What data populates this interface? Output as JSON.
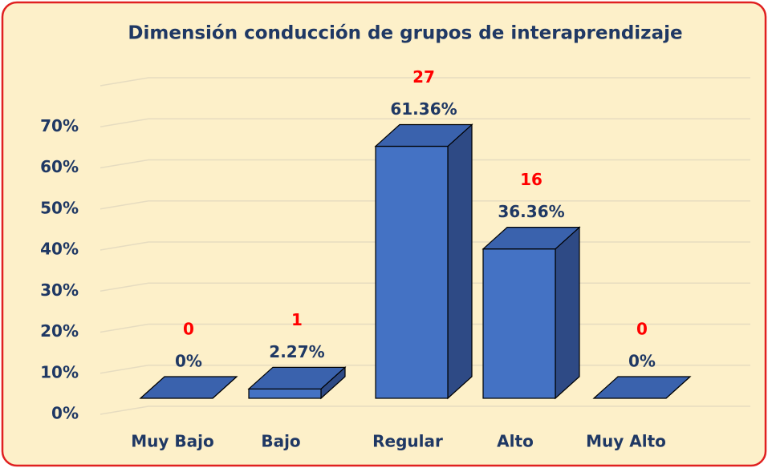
{
  "chart_data": {
    "type": "bar3d",
    "title": "Dimensión conducción de grupos de interaprendizaje",
    "categories": [
      "Muy Bajo",
      "Bajo",
      "Regular",
      "Alto",
      "Muy Alto"
    ],
    "values": [
      0,
      2.27,
      61.36,
      36.36,
      0
    ],
    "value_labels": [
      "0%",
      "2.27%",
      "61.36%",
      "36.36%",
      "0%"
    ],
    "counts": [
      0,
      1,
      27,
      16,
      0
    ],
    "color": "#4472c4",
    "ylim": [
      0,
      80
    ],
    "yticks": [
      {
        "value": 0,
        "label": "0%"
      },
      {
        "value": 10,
        "label": "10%"
      },
      {
        "value": 20,
        "label": "20%"
      },
      {
        "value": 30,
        "label": "30%"
      },
      {
        "value": 40,
        "label": "40%"
      },
      {
        "value": 50,
        "label": "50%"
      },
      {
        "value": 60,
        "label": "60%"
      },
      {
        "value": 70,
        "label": "70%"
      }
    ],
    "grid": true
  }
}
